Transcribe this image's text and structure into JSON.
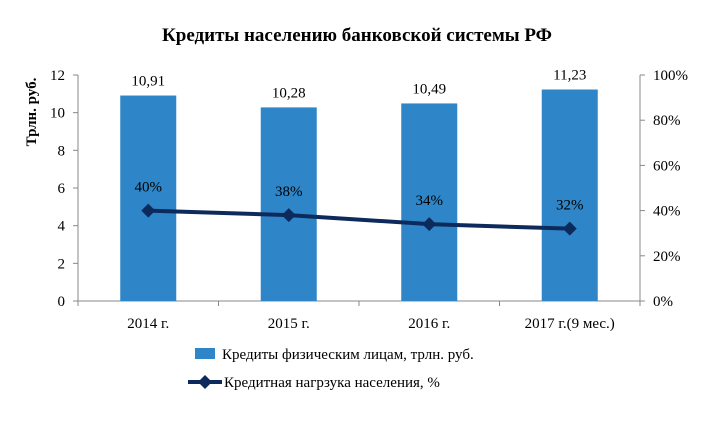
{
  "chart_data": {
    "type": "bar",
    "title": "Кредиты населению банковской системы РФ",
    "ylabel": "Трлн. руб.",
    "categories": [
      "2014 г.",
      "2015 г.",
      "2016 г.",
      "2017 г.(9 мес.)"
    ],
    "series": [
      {
        "name": "Кредиты физическим лицам, трлн. руб.",
        "type": "bar",
        "axis": "left",
        "values": [
          10.91,
          10.28,
          10.49,
          11.23
        ],
        "labels": [
          "10,91",
          "10,28",
          "10,49",
          "11,23"
        ],
        "color": "#2e86c8"
      },
      {
        "name": "Кредитная нагрзука населения, %",
        "type": "line",
        "axis": "right",
        "values": [
          40,
          38,
          34,
          32
        ],
        "labels": [
          "40%",
          "38%",
          "34%",
          "32%"
        ],
        "color": "#0d2a5c"
      }
    ],
    "ylim": [
      0,
      12
    ],
    "yticks": [
      "0",
      "2",
      "4",
      "6",
      "8",
      "10",
      "12"
    ],
    "y2lim": [
      0,
      100
    ],
    "y2ticks": [
      "0%",
      "20%",
      "40%",
      "60%",
      "80%",
      "100%"
    ],
    "legend_position": "bottom",
    "grid": false
  }
}
